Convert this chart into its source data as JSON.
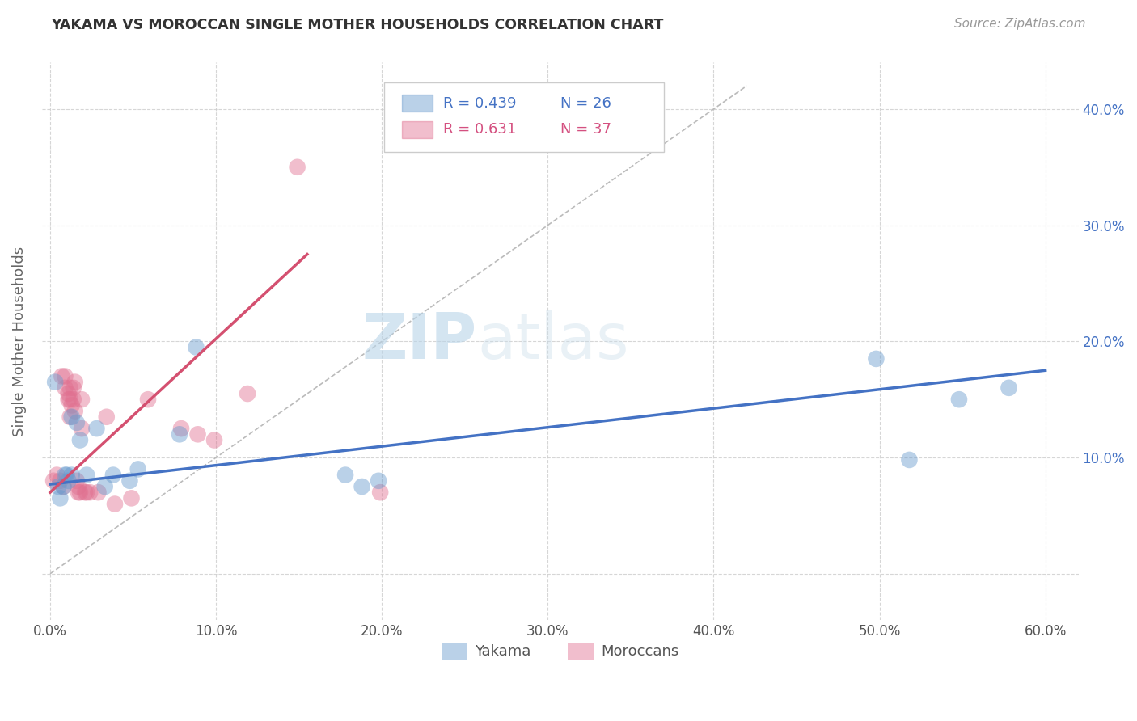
{
  "title": "YAKAMA VS MOROCCAN SINGLE MOTHER HOUSEHOLDS CORRELATION CHART",
  "source": "Source: ZipAtlas.com",
  "xlabel": "",
  "ylabel": "Single Mother Households",
  "watermark_zip": "ZIP",
  "watermark_atlas": "atlas",
  "xlim": [
    -0.005,
    0.62
  ],
  "ylim": [
    -0.04,
    0.44
  ],
  "xticks": [
    0.0,
    0.1,
    0.2,
    0.3,
    0.4,
    0.5,
    0.6
  ],
  "yticks": [
    0.0,
    0.1,
    0.2,
    0.3,
    0.4
  ],
  "ytick_labels": [
    "",
    "10.0%",
    "20.0%",
    "30.0%",
    "40.0%"
  ],
  "xtick_labels": [
    "0.0%",
    "10.0%",
    "20.0%",
    "30.0%",
    "40.0%",
    "50.0%",
    "60.0%"
  ],
  "legend_entries": [
    {
      "label_r": "R = 0.439",
      "label_n": "N = 26",
      "color": "#aec6e8",
      "text_color": "#4472c4"
    },
    {
      "label_r": "R = 0.631",
      "label_n": "N = 37",
      "color": "#f4b8c8",
      "text_color": "#d45080"
    }
  ],
  "legend_labels_bottom": [
    "Yakama",
    "Moroccans"
  ],
  "yakama_color": "#6699cc",
  "moroccan_color": "#e07090",
  "yakama_line_color": "#4472c4",
  "moroccan_line_color": "#d45070",
  "diag_line_color": "#bbbbbb",
  "background_color": "#ffffff",
  "grid_color": "#cccccc",
  "yaxis_label_color": "#4472c4",
  "yakama_points": [
    [
      0.003,
      0.165
    ],
    [
      0.005,
      0.075
    ],
    [
      0.006,
      0.065
    ],
    [
      0.008,
      0.075
    ],
    [
      0.009,
      0.085
    ],
    [
      0.01,
      0.085
    ],
    [
      0.011,
      0.08
    ],
    [
      0.013,
      0.135
    ],
    [
      0.013,
      0.085
    ],
    [
      0.016,
      0.13
    ],
    [
      0.018,
      0.115
    ],
    [
      0.022,
      0.085
    ],
    [
      0.028,
      0.125
    ],
    [
      0.033,
      0.075
    ],
    [
      0.038,
      0.085
    ],
    [
      0.048,
      0.08
    ],
    [
      0.053,
      0.09
    ],
    [
      0.078,
      0.12
    ],
    [
      0.088,
      0.195
    ],
    [
      0.178,
      0.085
    ],
    [
      0.188,
      0.075
    ],
    [
      0.198,
      0.08
    ],
    [
      0.498,
      0.185
    ],
    [
      0.518,
      0.098
    ],
    [
      0.548,
      0.15
    ],
    [
      0.578,
      0.16
    ]
  ],
  "moroccan_points": [
    [
      0.002,
      0.08
    ],
    [
      0.004,
      0.085
    ],
    [
      0.006,
      0.08
    ],
    [
      0.007,
      0.17
    ],
    [
      0.008,
      0.075
    ],
    [
      0.009,
      0.17
    ],
    [
      0.009,
      0.16
    ],
    [
      0.011,
      0.155
    ],
    [
      0.011,
      0.15
    ],
    [
      0.012,
      0.16
    ],
    [
      0.012,
      0.15
    ],
    [
      0.012,
      0.135
    ],
    [
      0.013,
      0.145
    ],
    [
      0.014,
      0.16
    ],
    [
      0.014,
      0.15
    ],
    [
      0.015,
      0.165
    ],
    [
      0.015,
      0.14
    ],
    [
      0.016,
      0.08
    ],
    [
      0.017,
      0.075
    ],
    [
      0.017,
      0.07
    ],
    [
      0.018,
      0.07
    ],
    [
      0.019,
      0.15
    ],
    [
      0.019,
      0.125
    ],
    [
      0.021,
      0.07
    ],
    [
      0.022,
      0.07
    ],
    [
      0.024,
      0.07
    ],
    [
      0.029,
      0.07
    ],
    [
      0.034,
      0.135
    ],
    [
      0.039,
      0.06
    ],
    [
      0.049,
      0.065
    ],
    [
      0.059,
      0.15
    ],
    [
      0.079,
      0.125
    ],
    [
      0.089,
      0.12
    ],
    [
      0.099,
      0.115
    ],
    [
      0.119,
      0.155
    ],
    [
      0.149,
      0.35
    ],
    [
      0.199,
      0.07
    ]
  ],
  "yakama_line": {
    "x0": 0.0,
    "x1": 0.6,
    "y0": 0.077,
    "y1": 0.175
  },
  "moroccan_line": {
    "x0": 0.0,
    "x1": 0.155,
    "y0": 0.07,
    "y1": 0.275
  }
}
